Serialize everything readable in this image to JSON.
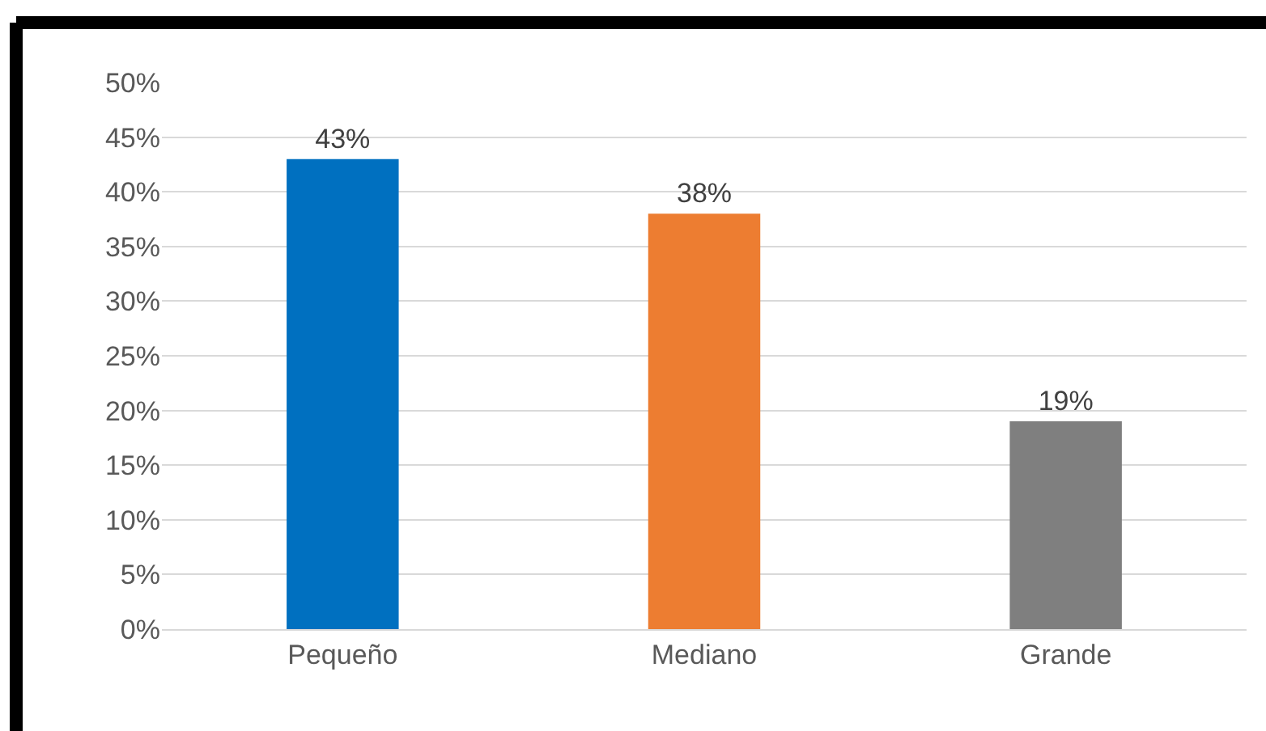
{
  "chart_data": {
    "type": "bar",
    "categories": [
      "Pequeño",
      "Mediano",
      "Grande"
    ],
    "values": [
      43,
      38,
      19
    ],
    "colors": [
      "#0070c0",
      "#ed7d31",
      "#7f7f7f"
    ],
    "value_labels": [
      "43%",
      "38%",
      "19%"
    ],
    "ylim": [
      0,
      50
    ],
    "yticks": [
      {
        "value": 0,
        "label": "0%"
      },
      {
        "value": 5,
        "label": "5%"
      },
      {
        "value": 10,
        "label": "10%"
      },
      {
        "value": 15,
        "label": "15%"
      },
      {
        "value": 20,
        "label": "20%"
      },
      {
        "value": 25,
        "label": "25%"
      },
      {
        "value": 30,
        "label": "30%"
      },
      {
        "value": 35,
        "label": "35%"
      },
      {
        "value": 40,
        "label": "40%"
      },
      {
        "value": 45,
        "label": "45%"
      },
      {
        "value": 50,
        "label": "50%"
      }
    ],
    "grid": "y"
  }
}
